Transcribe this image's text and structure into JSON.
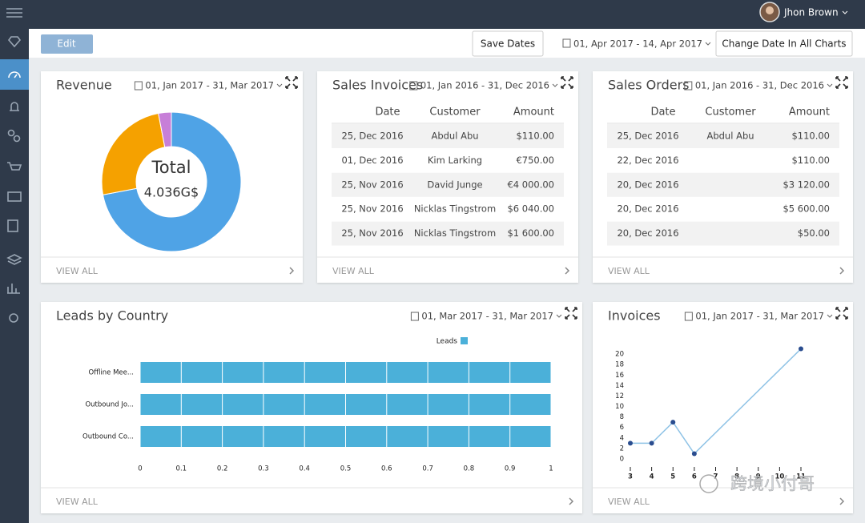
{
  "topbar": {
    "user": "Jhon Brown"
  },
  "toolbar": {
    "edit": "Edit",
    "save": "Save Dates",
    "range": "01, Apr 2017 - 14, Apr 2017",
    "change": "Change Date In All Charts"
  },
  "widgets": [
    {
      "title": "Revenue",
      "range": "01, Jan 2017 - 31, Mar 2017",
      "footer": "VIEW ALL"
    },
    {
      "title": "Sales Invoices",
      "range": "01, Jan 2016 - 31, Dec 2016",
      "footer": "VIEW ALL"
    },
    {
      "title": "Sales Orders",
      "range": "01, Jan 2016 - 31, Dec 2016",
      "footer": "VIEW ALL"
    },
    {
      "title": "Leads by Country",
      "range": "01, Mar 2017 - 31, Mar 2017",
      "footer": "VIEW ALL"
    },
    {
      "title": "Invoices",
      "range": "01, Jan 2017 - 31, Mar 2017",
      "footer": "VIEW ALL"
    }
  ],
  "tables": [
    {
      "columns": [
        "Date",
        "Customer",
        "Amount"
      ],
      "rows": [
        [
          "25, Dec 2016",
          "Abdul Abu",
          "$110.00"
        ],
        [
          "01, Dec 2016",
          "Kim Larking",
          "€750.00"
        ],
        [
          "25, Nov 2016",
          "David Junge",
          "€4 000.00"
        ],
        [
          "25, Nov 2016",
          "Nicklas Tingstrom",
          "$6 040.00"
        ],
        [
          "25, Nov 2016",
          "Nicklas Tingstrom",
          "$1 600.00"
        ]
      ]
    },
    {
      "columns": [
        "Date",
        "Customer",
        "Amount"
      ],
      "rows": [
        [
          "25, Dec 2016",
          "Abdul Abu",
          "$110.00"
        ],
        [
          "22, Dec 2016",
          null,
          "$110.00"
        ],
        [
          "20, Dec 2016",
          null,
          "$3 120.00"
        ],
        [
          "20, Dec 2016",
          null,
          "$5 600.00"
        ],
        [
          "20, Dec 2016",
          null,
          "$50.00"
        ]
      ]
    }
  ],
  "chart_data": [
    {
      "type": "pie",
      "donut": true,
      "values": [
        72,
        25,
        3
      ],
      "colors": [
        "#4fa3e6",
        "#f5a100",
        "#c77fd8"
      ],
      "center_label": "Total",
      "center_value": "4.036G$"
    },
    {
      "type": "bar",
      "orientation": "horizontal",
      "categories": [
        "Offline Mee...",
        "Outbound Jo...",
        "Outbound Co..."
      ],
      "series": [
        {
          "name": "Leads",
          "color": "#4bb0d9",
          "values": [
            1,
            1,
            1
          ]
        }
      ],
      "xlim": [
        0,
        1
      ],
      "xticks": [
        0,
        0.1,
        0.2,
        0.3,
        0.4,
        0.5,
        0.6,
        0.7,
        0.8,
        0.9,
        1
      ],
      "grid": true,
      "legend": "top"
    },
    {
      "type": "line",
      "x": [
        3,
        4,
        5,
        6,
        11
      ],
      "series": [
        {
          "values": [
            3,
            3,
            7,
            1,
            21
          ],
          "color": "#8fc3e6",
          "marker_color": "#2a4d8f"
        }
      ],
      "xlim": [
        3,
        11
      ],
      "xticks": [
        3,
        4,
        5,
        6,
        7,
        8,
        9,
        10,
        11
      ],
      "ylim": [
        0,
        22
      ],
      "yticks": [
        0,
        2,
        4,
        6,
        8,
        10,
        12,
        14,
        16,
        18,
        20
      ]
    }
  ],
  "watermark": "跨境小付哥"
}
